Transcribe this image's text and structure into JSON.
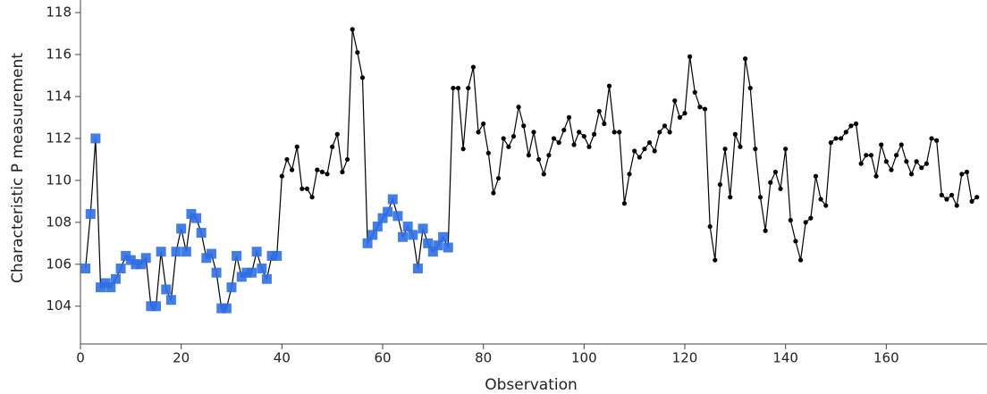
{
  "chart_data": {
    "type": "line",
    "xlabel": "Observation",
    "ylabel": "Characteristic P measurement",
    "x": [
      1,
      2,
      3,
      4,
      5,
      6,
      7,
      8,
      9,
      10,
      11,
      12,
      13,
      14,
      15,
      16,
      17,
      18,
      19,
      20,
      21,
      22,
      23,
      24,
      25,
      26,
      27,
      28,
      29,
      30,
      31,
      32,
      33,
      34,
      35,
      36,
      37,
      38,
      39,
      40,
      41,
      42,
      43,
      44,
      45,
      46,
      47,
      48,
      49,
      50,
      51,
      52,
      53,
      54,
      55,
      56,
      57,
      58,
      59,
      60,
      61,
      62,
      63,
      64,
      65,
      66,
      67,
      68,
      69,
      70,
      71,
      72,
      73,
      74,
      75,
      76,
      77,
      78,
      79,
      80,
      81,
      82,
      83,
      84,
      85,
      86,
      87,
      88,
      89,
      90,
      91,
      92,
      93,
      94,
      95,
      96,
      97,
      98,
      99,
      100,
      101,
      102,
      103,
      104,
      105,
      106,
      107,
      108,
      109,
      110,
      111,
      112,
      113,
      114,
      115,
      116,
      117,
      118,
      119,
      120,
      121,
      122,
      123,
      124,
      125,
      126,
      127,
      128,
      129,
      130,
      131,
      132,
      133,
      134,
      135,
      136,
      137,
      138,
      139,
      140,
      141,
      142,
      143,
      144,
      145,
      146,
      147,
      148,
      149,
      150,
      151,
      152,
      153,
      154,
      155,
      156,
      157,
      158,
      159,
      160,
      161,
      162,
      163,
      164,
      165,
      166,
      167,
      168,
      169,
      170,
      171,
      172,
      173,
      174,
      175,
      176,
      177,
      178
    ],
    "values": [
      105.8,
      108.4,
      112.0,
      104.9,
      105.1,
      104.9,
      105.3,
      105.8,
      106.4,
      106.2,
      106.0,
      106.0,
      106.3,
      104.0,
      104.0,
      106.6,
      104.8,
      104.3,
      106.6,
      107.7,
      106.6,
      108.4,
      108.2,
      107.5,
      106.3,
      106.5,
      105.6,
      103.9,
      103.9,
      104.9,
      106.4,
      105.4,
      105.6,
      105.6,
      106.6,
      105.8,
      105.3,
      106.4,
      106.4,
      110.2,
      111.0,
      110.5,
      111.6,
      109.6,
      109.6,
      109.2,
      110.5,
      110.4,
      110.3,
      111.6,
      112.2,
      110.4,
      111.0,
      117.2,
      116.1,
      114.9,
      107.0,
      107.4,
      107.8,
      108.2,
      108.5,
      109.1,
      108.3,
      107.3,
      107.8,
      107.4,
      105.8,
      107.7,
      107.0,
      106.6,
      106.9,
      107.3,
      106.8,
      114.4,
      114.4,
      111.5,
      114.4,
      115.4,
      112.3,
      112.7,
      111.3,
      109.4,
      110.1,
      112.0,
      111.6,
      112.1,
      113.5,
      112.6,
      111.2,
      112.3,
      111.0,
      110.3,
      111.2,
      112.0,
      111.8,
      112.4,
      113.0,
      111.7,
      112.3,
      112.1,
      111.6,
      112.2,
      113.3,
      112.7,
      114.5,
      112.3,
      112.3,
      108.9,
      110.3,
      111.4,
      111.1,
      111.5,
      111.8,
      111.4,
      112.3,
      112.6,
      112.3,
      113.8,
      113.0,
      113.2,
      115.9,
      114.2,
      113.5,
      113.4,
      107.8,
      106.2,
      109.8,
      111.5,
      109.2,
      112.2,
      111.6,
      115.8,
      114.4,
      111.5,
      109.2,
      107.6,
      109.9,
      110.4,
      109.6,
      111.5,
      108.1,
      107.1,
      106.2,
      108.0,
      108.2,
      110.2,
      109.1,
      108.8,
      111.8,
      112.0,
      112.0,
      112.3,
      112.6,
      112.7,
      110.8,
      111.2,
      111.2,
      110.2,
      111.7,
      110.9,
      110.5,
      111.2,
      111.7,
      110.9,
      110.3,
      110.9,
      110.6,
      110.8,
      112.0,
      111.9,
      109.3,
      109.1,
      109.3,
      108.8,
      110.3,
      110.4,
      109.0,
      109.2
    ],
    "color": "#000000",
    "selected_color": "#2f6fe6",
    "selected_ranges": [
      [
        1,
        39
      ],
      [
        57,
        73
      ]
    ],
    "xlim": [
      0,
      180
    ],
    "xticks": [
      0,
      20,
      40,
      60,
      80,
      100,
      120,
      140,
      160
    ],
    "ylim": [
      102.2,
      118.6
    ],
    "yticks": [
      104,
      106,
      108,
      110,
      112,
      114,
      116,
      118
    ]
  }
}
